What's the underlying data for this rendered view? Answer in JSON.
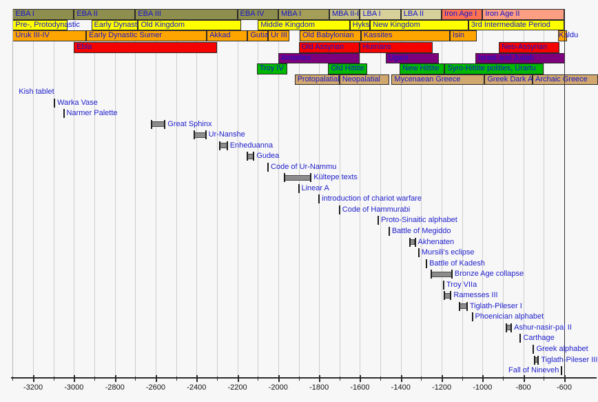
{
  "chart_data": {
    "type": "timeline",
    "title": "",
    "x_axis": {
      "unit": "year (BC shown as negative)",
      "range": [
        -3300,
        -600
      ],
      "major_tick_step": 200,
      "minor_tick_step": 100,
      "grid": true,
      "tick_labels": [
        "-3200",
        "-3000",
        "-2800",
        "-2600",
        "-2400",
        "-2200",
        "-2000",
        "-1800",
        "-1600",
        "-1400",
        "-1200",
        "-1000",
        "-800",
        "-600"
      ]
    },
    "period_rows": [
      {
        "name": "bronze-iron-age-phases",
        "segments": [
          {
            "label": "EBA I",
            "start": -3300,
            "end": -3000,
            "color": "#8e8e4e"
          },
          {
            "label": "EBA II",
            "start": -3000,
            "end": -2700,
            "color": "#8e8e4e"
          },
          {
            "label": "EBA III",
            "start": -2700,
            "end": -2200,
            "color": "#8e8e4e"
          },
          {
            "label": "EBA IV",
            "start": -2200,
            "end": -2000,
            "color": "#8e8e4e"
          },
          {
            "label": "MBA I",
            "start": -2000,
            "end": -1750,
            "color": "#a49e58"
          },
          {
            "label": "MBA II-III",
            "start": -1750,
            "end": -1600,
            "color": "#c2bc7e"
          },
          {
            "label": "LBA I",
            "start": -1600,
            "end": -1400,
            "color": "#d8d09b"
          },
          {
            "label": "LBA II",
            "start": -1400,
            "end": -1200,
            "color": "#d8d09b"
          },
          {
            "label": "Iron Age I",
            "start": -1200,
            "end": -1000,
            "color": "#fb7152"
          },
          {
            "label": "Iron Age II",
            "start": -1000,
            "end": -600,
            "color": "#fc9e82"
          }
        ]
      },
      {
        "name": "egypt",
        "segments": [
          {
            "label": "Pre-, Protodynastic",
            "start": -3300,
            "end": -3030,
            "color": "#ffff00"
          },
          {
            "label": "Early Dynastic",
            "start": -2915,
            "end": -2686,
            "color": "#ffff00"
          },
          {
            "label": "Old Kingdom",
            "start": -2686,
            "end": -2180,
            "color": "#ffff00"
          },
          {
            "label": "Middle Kingdom",
            "start": -2100,
            "end": -1650,
            "color": "#ffff00"
          },
          {
            "label": "Hyksos",
            "start": -1650,
            "end": -1550,
            "color": "#ffff00"
          },
          {
            "label": "New Kingdom",
            "start": -1550,
            "end": -1069,
            "color": "#ffff00"
          },
          {
            "label": "3rd Intermediate Period",
            "start": -1069,
            "end": -600,
            "color": "#ffff00"
          }
        ]
      },
      {
        "name": "mesopotamia",
        "segments": [
          {
            "label": "Uruk III-IV",
            "start": -3300,
            "end": -2940,
            "color": "#ffa500"
          },
          {
            "label": "Early Dynastic Sumer",
            "start": -2940,
            "end": -2350,
            "color": "#ffa500"
          },
          {
            "label": "Akkad",
            "start": -2350,
            "end": -2150,
            "color": "#ffa500"
          },
          {
            "label": "Gutian",
            "start": -2150,
            "end": -2050,
            "color": "#ffa500"
          },
          {
            "label": "Ur III",
            "start": -2050,
            "end": -1945,
            "color": "#ffa500"
          },
          {
            "label": "Old Babylonian",
            "start": -1895,
            "end": -1595,
            "color": "#ffa500"
          },
          {
            "label": "Kassites",
            "start": -1595,
            "end": -1160,
            "color": "#ffa500"
          },
          {
            "label": "Isin",
            "start": -1160,
            "end": -1027,
            "color": "#ffa500"
          },
          {
            "label": "Kaldu",
            "start": -630,
            "end": -585,
            "color": "#ffa500",
            "align": "right"
          }
        ]
      },
      {
        "name": "syria-assyria",
        "segments": [
          {
            "label": "Ebla",
            "start": -3000,
            "end": -2300,
            "color": "#f40400"
          },
          {
            "label": "Old Assyrian",
            "start": -1900,
            "end": -1600,
            "color": "#f40400"
          },
          {
            "label": "Hurrians",
            "start": -1600,
            "end": -1245,
            "color": "#f40400"
          },
          {
            "label": "Neo-Assyrian",
            "start": -920,
            "end": -625,
            "color": "#f40400"
          }
        ]
      },
      {
        "name": "levant",
        "segments": [
          {
            "label": "Amorites",
            "start": -2000,
            "end": -1600,
            "color": "#7d007d"
          },
          {
            "label": "Ugarit",
            "start": -1475,
            "end": -1215,
            "color": "#7d007d"
          },
          {
            "label": "Israel and Judah",
            "start": -1035,
            "end": -595,
            "color": "#7d007d"
          }
        ]
      },
      {
        "name": "anatolia",
        "segments": [
          {
            "label": "Troy IV",
            "start": -2105,
            "end": -1955,
            "color": "#00b800"
          },
          {
            "label": "Old Hittite",
            "start": -1755,
            "end": -1565,
            "color": "#00b800"
          },
          {
            "label": "New Hittite",
            "start": -1405,
            "end": -1185,
            "color": "#00b800"
          },
          {
            "label": "Syro-Hittite polities, Urartu",
            "start": -1185,
            "end": -700,
            "color": "#00b800"
          }
        ]
      },
      {
        "name": "aegean-greece",
        "segments": [
          {
            "label": "Protopalatial",
            "start": -1920,
            "end": -1700,
            "color": "#d0a76e"
          },
          {
            "label": "Neopalatial",
            "start": -1700,
            "end": -1455,
            "color": "#d0a76e"
          },
          {
            "label": "Mycenaean Greece",
            "start": -1445,
            "end": -990,
            "color": "#d0a76e"
          },
          {
            "label": "Greek Dark Ages",
            "start": -990,
            "end": -755,
            "color": "#d0a76e"
          },
          {
            "label": "Archaic Greece",
            "start": -755,
            "end": -435,
            "color": "#d0a76e"
          }
        ]
      }
    ],
    "events": [
      {
        "label": "Kish tablet",
        "marker": "none",
        "year": -3270
      },
      {
        "label": "Warka Vase",
        "marker": "tick",
        "year": -3095
      },
      {
        "label": "Narmer Palette",
        "marker": "tick",
        "year": -3050
      },
      {
        "label": "Great Sphinx",
        "marker": "bar",
        "start": -2620,
        "end": -2555
      },
      {
        "label": "Ur-Nanshe",
        "marker": "bar",
        "start": -2410,
        "end": -2355
      },
      {
        "label": "Enheduanna",
        "marker": "bar",
        "start": -2285,
        "end": -2250
      },
      {
        "label": "Gudea",
        "marker": "bar",
        "start": -2150,
        "end": -2120
      },
      {
        "label": "Code of Ur-Nammu",
        "marker": "tick",
        "year": -2050
      },
      {
        "label": "Kültepe texts",
        "marker": "bar",
        "start": -1970,
        "end": -1840
      },
      {
        "label": "Linear A",
        "marker": "tick",
        "year": -1900
      },
      {
        "label": "introduction of chariot warfare",
        "marker": "tick",
        "year": -1800
      },
      {
        "label": "Code of Hammurabi",
        "marker": "tick",
        "year": -1700
      },
      {
        "label": "Proto-Sinaitic alphabet",
        "marker": "tick",
        "year": -1510
      },
      {
        "label": "Battle of Megiddo",
        "marker": "tick",
        "year": -1457
      },
      {
        "label": "Akhenaten",
        "marker": "bar",
        "start": -1355,
        "end": -1330
      },
      {
        "label": "Mursili's eclipse",
        "marker": "tick",
        "year": -1312
      },
      {
        "label": "Battle of Kadesh",
        "marker": "tick",
        "year": -1274
      },
      {
        "label": "Bronze Age collapse",
        "marker": "bar",
        "start": -1250,
        "end": -1150
      },
      {
        "label": "Troy VIIa",
        "marker": "tick",
        "year": -1190
      },
      {
        "label": "Ramesses III",
        "marker": "bar",
        "start": -1186,
        "end": -1155
      },
      {
        "label": "Tiglath-Pileser I",
        "marker": "bar",
        "start": -1114,
        "end": -1076
      },
      {
        "label": "Phoenician alphabet",
        "marker": "tick",
        "year": -1050
      },
      {
        "label": "Ashur-nasir-pal II",
        "marker": "bar",
        "start": -883,
        "end": -859
      },
      {
        "label": "Carthage",
        "marker": "tick",
        "year": -814
      },
      {
        "label": "Greek alphabet",
        "marker": "tick",
        "year": -750
      },
      {
        "label": "Tiglath-Pileser III",
        "marker": "bar",
        "start": -745,
        "end": -727
      },
      {
        "label": "Fall of Nineveh",
        "marker": "tick",
        "year": -612,
        "label_side": "left"
      }
    ],
    "colors": {
      "background": "#f7f7f7",
      "gridline": "#cdcdcd",
      "band_text": "#1414cc",
      "event_text": "#2020cc",
      "event_bar_fill": "#8c8c8c",
      "event_marker": "#1d1d1d",
      "axis": "#2a2a2a"
    }
  }
}
